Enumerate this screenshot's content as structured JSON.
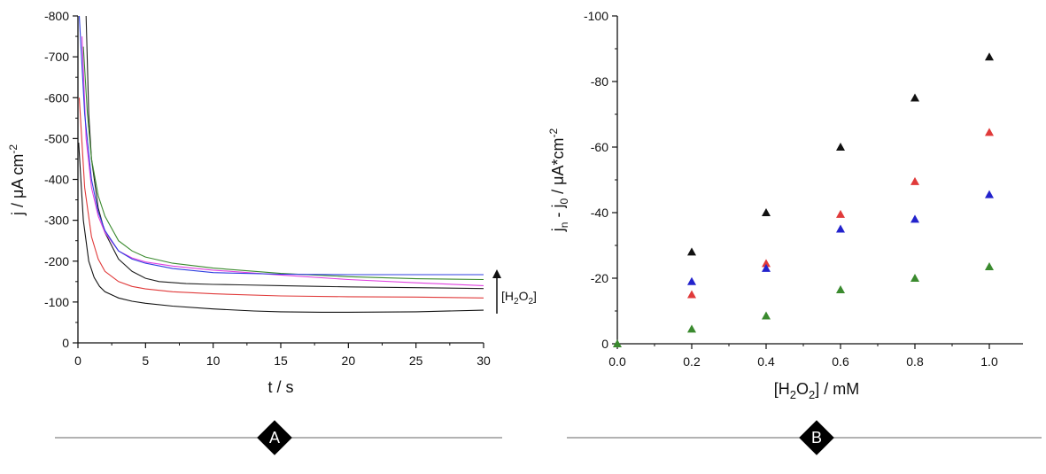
{
  "chart_data": [
    {
      "panel": "A",
      "type": "line",
      "xlabel": "t / s",
      "ylabel": {
        "main": "j / μA cm",
        "sup": "-2"
      },
      "xlim": [
        0,
        30
      ],
      "ylim": [
        0,
        -800
      ],
      "xticks": [
        0,
        5,
        10,
        15,
        20,
        25,
        30
      ],
      "yticks": [
        0,
        -100,
        -200,
        -300,
        -400,
        -500,
        -600,
        -700,
        -800
      ],
      "arrow_label": {
        "pre": "[H",
        "sub": "2",
        "mid": "O",
        "sub2": "2",
        "post": "]"
      },
      "series": [
        {
          "color": "#1f1f1f",
          "x": [
            0.6,
            0.8,
            1,
            1.5,
            2,
            3,
            4,
            5,
            6,
            8,
            10,
            12,
            15,
            18,
            20,
            25,
            30
          ],
          "y": [
            -800,
            -560,
            -450,
            -330,
            -270,
            -205,
            -175,
            -158,
            -150,
            -145,
            -143,
            -142,
            -140,
            -138,
            -137,
            -135,
            -133
          ]
        },
        {
          "color": "#3a8a2e",
          "x": [
            0.4,
            0.7,
            1,
            1.5,
            2,
            3,
            4,
            5,
            7,
            10,
            15,
            20,
            25,
            30
          ],
          "y": [
            -725,
            -560,
            -450,
            -360,
            -310,
            -250,
            -225,
            -210,
            -195,
            -183,
            -170,
            -162,
            -157,
            -155
          ]
        },
        {
          "color": "#e040e0",
          "x": [
            0.3,
            0.6,
            1,
            1.5,
            2,
            3,
            4,
            5,
            7,
            10,
            15,
            20,
            25,
            30
          ],
          "y": [
            -750,
            -500,
            -380,
            -310,
            -270,
            -225,
            -208,
            -198,
            -188,
            -178,
            -166,
            -155,
            -147,
            -140
          ]
        },
        {
          "color": "#2f3fe0",
          "x": [
            0.1,
            0.5,
            1,
            1.5,
            2,
            3,
            4,
            5,
            7,
            10,
            15,
            20,
            25,
            30
          ],
          "y": [
            -800,
            -560,
            -400,
            -320,
            -275,
            -225,
            -205,
            -195,
            -182,
            -172,
            -168,
            -167,
            -167,
            -167
          ]
        },
        {
          "color": "#e03a3a",
          "x": [
            0.1,
            0.5,
            1,
            1.5,
            2,
            3,
            4,
            5,
            7,
            10,
            15,
            20,
            25,
            30
          ],
          "y": [
            -600,
            -380,
            -260,
            -205,
            -175,
            -150,
            -138,
            -132,
            -125,
            -120,
            -115,
            -113,
            -112,
            -110
          ]
        },
        {
          "color": "#111111",
          "x": [
            0.05,
            0.4,
            0.8,
            1.2,
            1.6,
            2,
            3,
            4,
            5,
            7,
            10,
            13,
            15,
            18,
            20,
            25,
            30
          ],
          "y": [
            -490,
            -300,
            -200,
            -160,
            -138,
            -125,
            -110,
            -102,
            -97,
            -90,
            -83,
            -78,
            -76,
            -75,
            -75,
            -76,
            -80
          ]
        }
      ]
    },
    {
      "panel": "B",
      "type": "scatter",
      "xlabel": {
        "pre": "[H",
        "sub": "2",
        "mid": "O",
        "sub2": "2",
        "post": "] / mM"
      },
      "ylabel": {
        "a": "j",
        "a_sub": "n",
        "b": " - j",
        "b_sub": "0",
        "c": " / μA*cm",
        "c_sup": "-2"
      },
      "xlim": [
        0,
        1.0
      ],
      "ylim": [
        0,
        -100
      ],
      "xticks": [
        "0.0",
        "0.2",
        "0.4",
        "0.6",
        "0.8",
        "1.0"
      ],
      "yticks": [
        "0",
        "-20",
        "-40",
        "-60",
        "-80",
        "-100"
      ],
      "series": [
        {
          "color": "#111111",
          "x": [
            0.2,
            0.4,
            0.6,
            0.8,
            1.0
          ],
          "y": [
            -28,
            -40,
            -60,
            -75,
            -87.5
          ]
        },
        {
          "color": "#e03a3a",
          "x": [
            0.2,
            0.4,
            0.6,
            0.8,
            1.0
          ],
          "y": [
            -15,
            -24.5,
            -39.5,
            -49.5,
            -64.5
          ]
        },
        {
          "color": "#2222cc",
          "x": [
            0.2,
            0.4,
            0.6,
            0.8,
            1.0
          ],
          "y": [
            -19,
            -23,
            -35,
            -38,
            -45.5
          ]
        },
        {
          "color": "#3a8a2e",
          "x": [
            0,
            0.2,
            0.4,
            0.6,
            0.8,
            1.0
          ],
          "y": [
            0,
            -4.5,
            -8.5,
            -16.5,
            -20,
            -23.5
          ]
        }
      ]
    }
  ],
  "badges": {
    "a": "A",
    "b": "B"
  }
}
